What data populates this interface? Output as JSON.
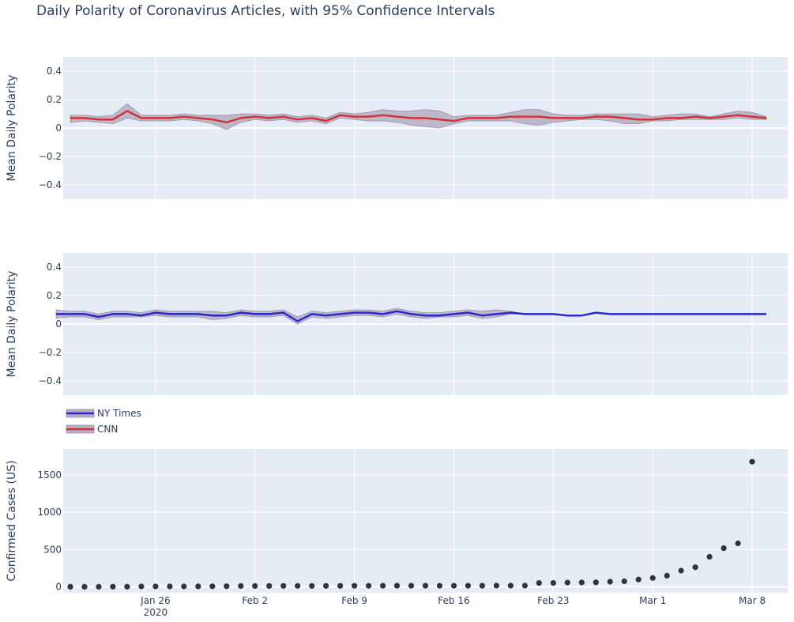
{
  "title": "Daily Polarity of Coronavirus Articles, with 95% Confidence Intervals",
  "colors": {
    "plot_bg": "#e5ecf6",
    "grid": "#ffffff",
    "cnn_line": "#d03434",
    "nyt_line": "#2929c8",
    "band": "#b7aec3",
    "band_stroke": "#9b92aa",
    "scatter": "#2f3440",
    "text": "#2a3f5f"
  },
  "x_axis": {
    "range": [
      "2020-01-19T12:00",
      "2020-03-10T12:00"
    ],
    "ticks": [
      {
        "date": "2020-01-26",
        "label": "Jan 26",
        "sublabel": "2020"
      },
      {
        "date": "2020-02-02",
        "label": "Feb 2",
        "sublabel": ""
      },
      {
        "date": "2020-02-09",
        "label": "Feb 9",
        "sublabel": ""
      },
      {
        "date": "2020-02-16",
        "label": "Feb 16",
        "sublabel": ""
      },
      {
        "date": "2020-02-23",
        "label": "Feb 23",
        "sublabel": ""
      },
      {
        "date": "2020-03-01",
        "label": "Mar 1",
        "sublabel": ""
      },
      {
        "date": "2020-03-08",
        "label": "Mar 8",
        "sublabel": ""
      }
    ]
  },
  "legend": [
    {
      "name": "NY Times",
      "color": "#2929c8"
    },
    {
      "name": "CNN",
      "color": "#d03434"
    }
  ],
  "chart_data": [
    {
      "type": "line",
      "panel": "top",
      "ylabel": "Mean Daily Polarity",
      "ylim": [
        -0.5,
        0.5
      ],
      "yticks": [
        -0.4,
        -0.2,
        0,
        0.2,
        0.4
      ],
      "ytick_labels": [
        "−0.4",
        "−0.2",
        "0",
        "0.2",
        "0.4"
      ],
      "x_start": "2020-01-20",
      "series": [
        {
          "name": "CNN",
          "values": [
            0.07,
            0.07,
            0.06,
            0.06,
            0.12,
            0.07,
            0.07,
            0.07,
            0.08,
            0.07,
            0.06,
            0.04,
            0.07,
            0.08,
            0.07,
            0.08,
            0.06,
            0.07,
            0.05,
            0.09,
            0.08,
            0.08,
            0.09,
            0.08,
            0.07,
            0.07,
            0.06,
            0.05,
            0.07,
            0.07,
            0.07,
            0.08,
            0.08,
            0.08,
            0.07,
            0.07,
            0.07,
            0.08,
            0.08,
            0.07,
            0.06,
            0.06,
            0.07,
            0.07,
            0.08,
            0.07,
            0.08,
            0.09,
            0.08,
            0.07
          ],
          "ci_lower": [
            0.04,
            0.05,
            0.04,
            0.03,
            0.07,
            0.05,
            0.05,
            0.05,
            0.06,
            0.05,
            0.03,
            -0.01,
            0.04,
            0.06,
            0.05,
            0.06,
            0.04,
            0.05,
            0.03,
            0.07,
            0.06,
            0.05,
            0.05,
            0.04,
            0.02,
            0.01,
            0.0,
            0.03,
            0.05,
            0.05,
            0.05,
            0.05,
            0.03,
            0.02,
            0.04,
            0.05,
            0.06,
            0.06,
            0.05,
            0.03,
            0.03,
            0.05,
            0.05,
            0.06,
            0.06,
            0.06,
            0.06,
            0.07,
            0.06,
            0.06
          ],
          "ci_upper": [
            0.09,
            0.09,
            0.08,
            0.09,
            0.17,
            0.09,
            0.09,
            0.09,
            0.1,
            0.09,
            0.09,
            0.09,
            0.1,
            0.1,
            0.09,
            0.1,
            0.08,
            0.09,
            0.07,
            0.11,
            0.1,
            0.11,
            0.13,
            0.12,
            0.12,
            0.13,
            0.12,
            0.08,
            0.09,
            0.09,
            0.09,
            0.11,
            0.13,
            0.13,
            0.1,
            0.09,
            0.09,
            0.1,
            0.1,
            0.1,
            0.1,
            0.08,
            0.09,
            0.1,
            0.1,
            0.08,
            0.1,
            0.12,
            0.11,
            0.08
          ]
        }
      ]
    },
    {
      "type": "line",
      "panel": "middle",
      "ylabel": "Mean Daily Polarity",
      "ylim": [
        -0.5,
        0.5
      ],
      "yticks": [
        -0.4,
        -0.2,
        0,
        0.2,
        0.4
      ],
      "ytick_labels": [
        "−0.4",
        "−0.2",
        "0",
        "0.2",
        "0.4"
      ],
      "x_start": "2020-01-19",
      "series": [
        {
          "name": "NY Times",
          "values": [
            0.07,
            0.07,
            0.07,
            0.05,
            0.07,
            0.07,
            0.06,
            0.08,
            0.07,
            0.07,
            0.07,
            0.06,
            0.06,
            0.08,
            0.07,
            0.07,
            0.08,
            0.02,
            0.07,
            0.06,
            0.07,
            0.08,
            0.08,
            0.07,
            0.09,
            0.07,
            0.06,
            0.06,
            0.07,
            0.08,
            0.06,
            0.07,
            0.08,
            0.07,
            0.07,
            0.07,
            0.06,
            0.06,
            0.08,
            0.07,
            0.07,
            0.07,
            0.07,
            0.07,
            0.07,
            0.07,
            0.07,
            0.07,
            0.07,
            0.07,
            0.07
          ],
          "ci_lower": [
            0.04,
            0.05,
            0.05,
            0.03,
            0.05,
            0.05,
            0.05,
            0.06,
            0.05,
            0.05,
            0.05,
            0.03,
            0.04,
            0.06,
            0.05,
            0.05,
            0.06,
            0.0,
            0.05,
            0.04,
            0.05,
            0.06,
            0.06,
            0.05,
            0.07,
            0.05,
            0.04,
            0.05,
            0.05,
            0.06,
            0.04,
            0.05,
            0.07,
            0.07,
            0.07,
            0.07,
            0.06,
            0.06,
            0.08,
            0.07,
            0.07,
            0.07,
            0.07,
            0.07,
            0.07,
            0.07,
            0.07,
            0.07,
            0.07,
            0.07,
            0.07
          ],
          "ci_upper": [
            0.1,
            0.09,
            0.09,
            0.07,
            0.09,
            0.09,
            0.08,
            0.1,
            0.09,
            0.09,
            0.09,
            0.09,
            0.08,
            0.1,
            0.09,
            0.09,
            0.1,
            0.05,
            0.09,
            0.08,
            0.09,
            0.1,
            0.1,
            0.09,
            0.11,
            0.09,
            0.08,
            0.08,
            0.09,
            0.1,
            0.09,
            0.1,
            0.09,
            0.07,
            0.07,
            0.07,
            0.06,
            0.06,
            0.08,
            0.07,
            0.07,
            0.07,
            0.07,
            0.07,
            0.07,
            0.07,
            0.07,
            0.07,
            0.07,
            0.07,
            0.07
          ]
        }
      ]
    },
    {
      "type": "scatter",
      "panel": "bottom",
      "ylabel": "Confirmed Cases (US)",
      "ylim": [
        -80,
        1850
      ],
      "yticks": [
        0,
        500,
        1000,
        1500
      ],
      "ytick_labels": [
        "0",
        "500",
        "1000",
        "1500"
      ],
      "x_start": "2020-01-20",
      "series": [
        {
          "name": "Confirmed Cases",
          "values": [
            1,
            1,
            1,
            2,
            2,
            5,
            5,
            5,
            5,
            6,
            7,
            8,
            11,
            11,
            11,
            12,
            12,
            12,
            12,
            12,
            13,
            13,
            14,
            14,
            14,
            14,
            14,
            14,
            14,
            14,
            15,
            15,
            15,
            51,
            51,
            57,
            58,
            60,
            68,
            74,
            98,
            118,
            149,
            217,
            262,
            402,
            518,
            583,
            1678
          ]
        }
      ]
    }
  ]
}
